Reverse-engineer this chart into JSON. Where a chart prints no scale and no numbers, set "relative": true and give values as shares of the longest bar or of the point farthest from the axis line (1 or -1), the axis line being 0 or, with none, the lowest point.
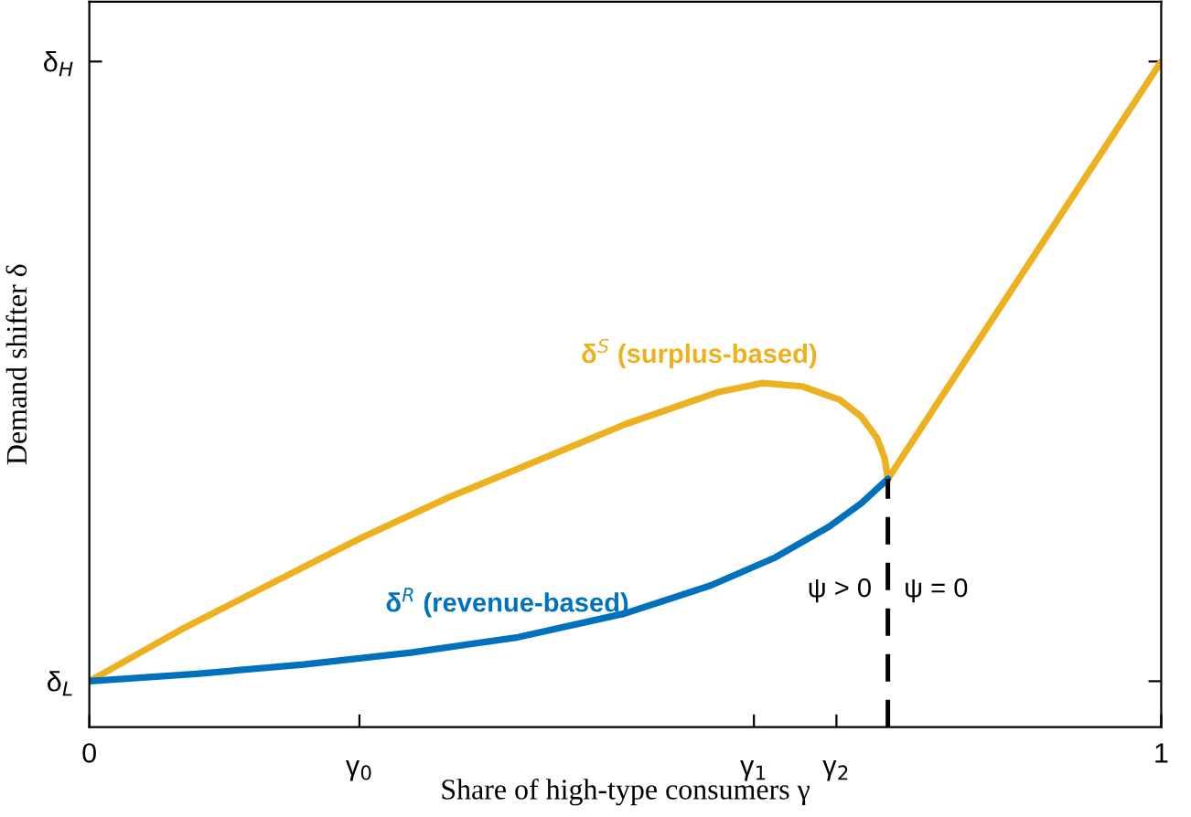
{
  "chart_data": {
    "type": "line",
    "xlabel": "Share of high-type consumers γ",
    "ylabel": "Demand shifter δ",
    "xlim": [
      0,
      1
    ],
    "relative": true,
    "xticks": [
      0,
      {
        "value": 0.252,
        "label": null
      },
      {
        "value": 0.62,
        "label": null
      },
      {
        "value": 0.697,
        "label": null
      },
      1
    ],
    "series": [
      {
        "name": "δ$^{S}$ (surplus-based)",
        "color": "#edb120",
        "x": [
          0,
          0.085,
          0.17,
          0.252,
          0.335,
          0.419,
          0.5,
          0.586,
          0.628,
          0.665,
          0.7,
          0.72,
          0.735,
          0.742,
          0.745,
          1
        ],
        "values": [
          0.069,
          0.146,
          0.216,
          0.283,
          0.345,
          0.401,
          0.455,
          0.503,
          0.517,
          0.512,
          0.492,
          0.467,
          0.434,
          0.404,
          0.373,
          1
        ]
      },
      {
        "name": "δ$^{R}$ (revenue-based)",
        "color": "#0072bd",
        "x": [
          0,
          0.1,
          0.2,
          0.3,
          0.4,
          0.5,
          0.58,
          0.64,
          0.69,
          0.72,
          0.745
        ],
        "values": [
          0.069,
          0.08,
          0.094,
          0.112,
          0.135,
          0.171,
          0.213,
          0.255,
          0.301,
          0.336,
          0.373
        ]
      }
    ],
    "ref_lines": [
      {
        "axis": "x",
        "value": 0.745,
        "color": "#000000",
        "line_style": "dashed"
      }
    ],
    "annotations": [
      "δ$_{L}$",
      "δ$_{H}$",
      "ψ > 0",
      "ψ = 0",
      "γ$_{0}$",
      "γ$_{1}$",
      "γ$_{2}$"
    ],
    "grid": false,
    "legend": false,
    "marker": "none",
    "line_style": "solid"
  }
}
